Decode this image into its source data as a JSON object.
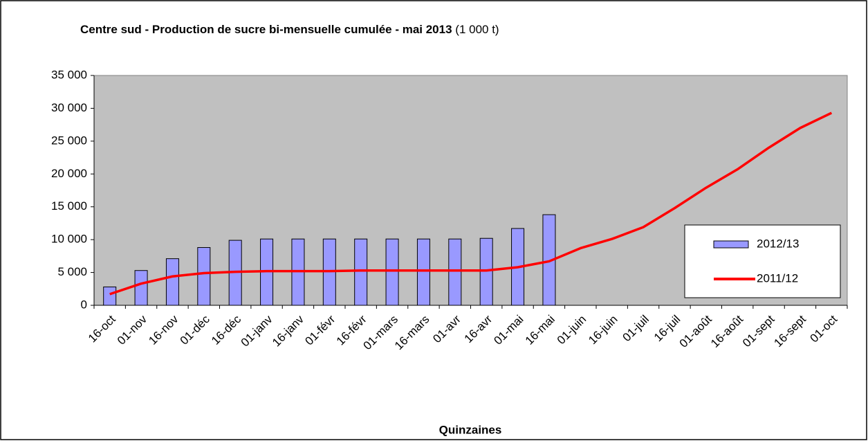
{
  "chart_data": {
    "type": "bar_line",
    "title": "Centre sud - Production de sucre bi-mensuelle cumulée - mai 2013",
    "title_unit": "(1 000 t)",
    "x_label": "Quinzaines",
    "categories": [
      "16-oct",
      "01-nov",
      "16-nov",
      "01-déc",
      "16-déc",
      "01-janv",
      "16-janv",
      "01-févr",
      "16-févr",
      "01-mars",
      "16-mars",
      "01-avr",
      "16-avr",
      "01-mai",
      "16-mai",
      "01-juin",
      "16-juin",
      "01-juil",
      "16-juil",
      "01-août",
      "16-août",
      "01-sept",
      "16-sept",
      "01-oct"
    ],
    "series": [
      {
        "name": "2012/13",
        "kind": "bar",
        "color": "#9999ff",
        "values": [
          2800,
          5300,
          7100,
          8800,
          9900,
          10100,
          10100,
          10100,
          10100,
          10100,
          10100,
          10100,
          10200,
          11700,
          13800,
          null,
          null,
          null,
          null,
          null,
          null,
          null,
          null,
          null
        ]
      },
      {
        "name": "2011/12",
        "kind": "line",
        "color": "#ff0000",
        "values": [
          1700,
          3300,
          4400,
          4900,
          5100,
          5200,
          5200,
          5200,
          5300,
          5300,
          5300,
          5300,
          5300,
          5800,
          6700,
          8700,
          10100,
          11900,
          14800,
          17900,
          20700,
          24000,
          27000,
          29300
        ]
      }
    ],
    "ylim": [
      0,
      35000
    ],
    "yticks": [
      0,
      {
        "value": 5000,
        "label": "5 000"
      },
      {
        "value": 10000,
        "label": "10 000"
      },
      {
        "value": 15000,
        "label": "15 000"
      },
      {
        "value": 20000,
        "label": "20 000"
      },
      {
        "value": 25000,
        "label": "25 000"
      },
      {
        "value": 30000,
        "label": "30 000"
      },
      {
        "value": 35000,
        "label": "35 000"
      }
    ],
    "grid": false,
    "legend_position": "right"
  }
}
